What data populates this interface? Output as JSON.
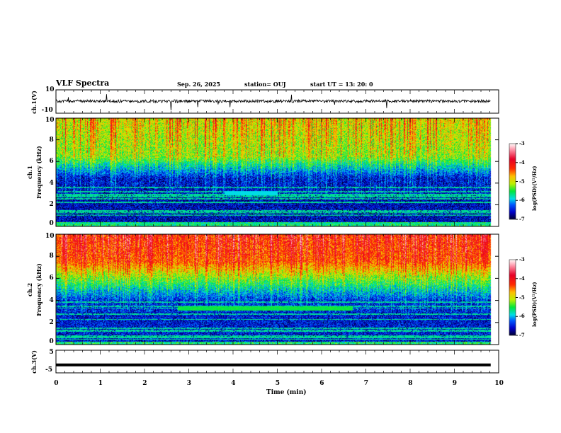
{
  "header": {
    "title": "VLF Spectra",
    "date": "Sep. 26, 2025",
    "station": "station= OUJ",
    "start": "start  UT  =   13: 20: 0"
  },
  "chart_data": [
    {
      "type": "line",
      "name": "ch.1 waveform",
      "ylabel": "ch.1(V)",
      "ylim": [
        -10,
        10
      ],
      "yticks": [
        "10",
        "-10"
      ],
      "xlim": [
        0,
        10
      ]
    },
    {
      "type": "heatmap",
      "name": "ch.1 spectrogram",
      "ylabel": "ch.1 Frequency (kHz)",
      "ylim": [
        0,
        10
      ],
      "yticks": [
        "0",
        "2",
        "4",
        "6",
        "8",
        "10"
      ],
      "xlim": [
        0,
        10
      ],
      "data_end_min": 9.82,
      "colorbar": {
        "label": "log(PSD)(V²/Hz)",
        "range": [
          -7,
          -3
        ],
        "ticks": [
          "-3",
          "-4",
          "-5",
          "-6",
          "-7"
        ]
      }
    },
    {
      "type": "heatmap",
      "name": "ch.2 spectrogram",
      "ylabel": "ch.2 Frequency (kHz)",
      "ylim": [
        0,
        10
      ],
      "yticks": [
        "0",
        "2",
        "4",
        "6",
        "8",
        "10"
      ],
      "xlim": [
        0,
        10
      ],
      "data_end_min": 9.82,
      "colorbar": {
        "label": "log(PSD)(V²/Hz)",
        "range": [
          -7,
          -3
        ],
        "ticks": [
          "-3",
          "-4",
          "-5",
          "-6",
          "-7"
        ]
      }
    },
    {
      "type": "line",
      "name": "ch.3 waveform",
      "ylabel": "ch.3(V)",
      "ylim": [
        -5,
        5
      ],
      "yticks": [
        "5",
        "-5"
      ],
      "xlim": [
        0,
        10
      ],
      "constant_value": -1.5
    }
  ],
  "xaxis": {
    "label": "Time  (min)",
    "ticks": [
      "0",
      "1",
      "2",
      "3",
      "4",
      "5",
      "6",
      "7",
      "8",
      "9",
      "10"
    ]
  },
  "labels": {
    "ch1_wave": "ch.1(V)",
    "ch1_spec_a": "ch.1",
    "ch1_spec_b": "Frequency (kHz)",
    "ch2_spec_a": "ch.2",
    "ch2_spec_b": "Frequency (kHz)",
    "ch3_wave": "ch.3(V)",
    "cbar": "log(PSD)(V²/Hz)"
  }
}
